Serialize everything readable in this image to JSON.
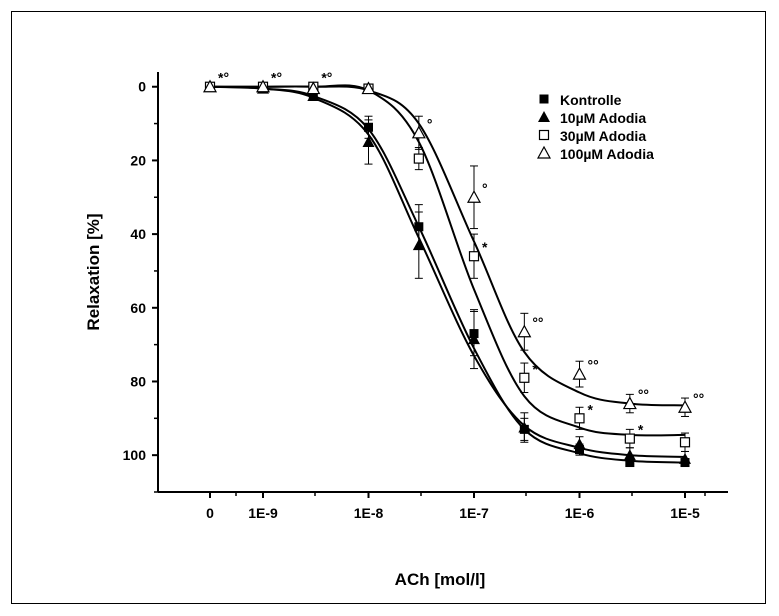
{
  "chart_data": {
    "type": "scatter",
    "title": "",
    "xlabel": "ACh [mol/l]",
    "ylabel": "Relaxation [%]",
    "ylim": [
      110,
      -4
    ],
    "y_inverted": true,
    "x_scale": "log",
    "x_tick_labels": [
      "0",
      "1E-9",
      "1E-8",
      "1E-7",
      "1E-6",
      "1E-5"
    ],
    "y_ticks": [
      0,
      20,
      40,
      60,
      80,
      100
    ],
    "grid": false,
    "legend": "top-right",
    "x": [
      "0",
      "1E-9",
      "3E-9",
      "1E-8",
      "3E-8",
      "1E-7",
      "3E-7",
      "1E-6",
      "3E-6",
      "1E-5"
    ],
    "series": [
      {
        "name": "Kontrolle",
        "marker": "filled-square",
        "values": [
          0,
          0.5,
          2.5,
          11,
          38,
          67,
          93,
          98.5,
          102,
          102
        ],
        "errors": [
          0.5,
          0.5,
          1,
          3,
          6,
          6,
          3,
          1.5,
          1,
          1
        ],
        "curve": [
          0,
          0.5,
          2.5,
          11.5,
          38,
          71,
          93,
          99.5,
          101.5,
          102
        ]
      },
      {
        "name": "10µM Adodia",
        "marker": "filled-triangle",
        "values": [
          0,
          0.5,
          2.5,
          15,
          43,
          68.5,
          92.5,
          97,
          100,
          101
        ],
        "errors": [
          0.5,
          0.5,
          1,
          6,
          9,
          8,
          4,
          2,
          2,
          2
        ],
        "curve": [
          0,
          0.5,
          3,
          13,
          41,
          73,
          92,
          98,
          100,
          100.5
        ]
      },
      {
        "name": "30µM Adodia",
        "marker": "open-square",
        "values": [
          0,
          0,
          0,
          0.5,
          19.5,
          46,
          79,
          90,
          95.5,
          96.5
        ],
        "errors": [
          0.5,
          0.5,
          1,
          1,
          3,
          6,
          4,
          3,
          2.5,
          2.5
        ],
        "curve": [
          0,
          0,
          0,
          1,
          15,
          55,
          84,
          92.5,
          94.5,
          94.5
        ],
        "annotations": [
          "*°",
          "*°",
          "*°",
          "",
          "",
          "*",
          "*",
          "*",
          "*",
          ""
        ]
      },
      {
        "name": "100µM Adodia",
        "marker": "open-triangle",
        "values": [
          0,
          0,
          0.5,
          0.5,
          12.5,
          30,
          66.5,
          78,
          86,
          87
        ],
        "errors": [
          0.5,
          0.5,
          1,
          1,
          4.5,
          8.5,
          5,
          3.5,
          2.5,
          2.5
        ],
        "curve": [
          0,
          0,
          0,
          1,
          10,
          42,
          72,
          83,
          86,
          86.5
        ],
        "annotations": [
          "",
          "",
          "",
          "",
          "°",
          "°",
          "°°",
          "°°",
          "°°",
          "°°"
        ]
      }
    ]
  }
}
